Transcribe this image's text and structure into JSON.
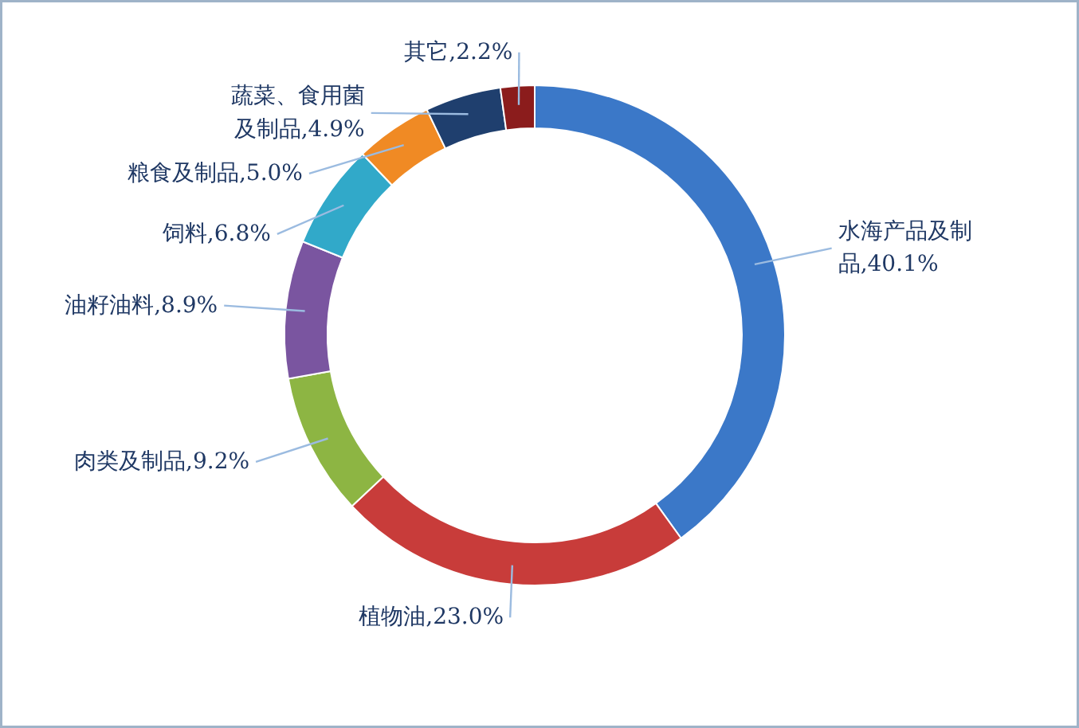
{
  "chart_data": {
    "type": "donut",
    "categories": [
      "水海产品及制品",
      "植物油",
      "肉类及制品",
      "油籽油料",
      "饲料",
      "粮食及制品",
      "蔬菜、食用菌及制品",
      "其它"
    ],
    "values": [
      40.1,
      23.0,
      9.2,
      8.9,
      6.8,
      5.0,
      4.9,
      2.2
    ],
    "value_labels": [
      "40.1%",
      "23.0%",
      "9.2%",
      "8.9%",
      "6.8%",
      "5.0%",
      "4.9%",
      "2.2%"
    ],
    "colors": [
      "#3b78c8",
      "#c83c3a",
      "#8db543",
      "#7a55a0",
      "#31a9c9",
      "#f08a24",
      "#1f3f6e",
      "#8b1c1c"
    ]
  }
}
